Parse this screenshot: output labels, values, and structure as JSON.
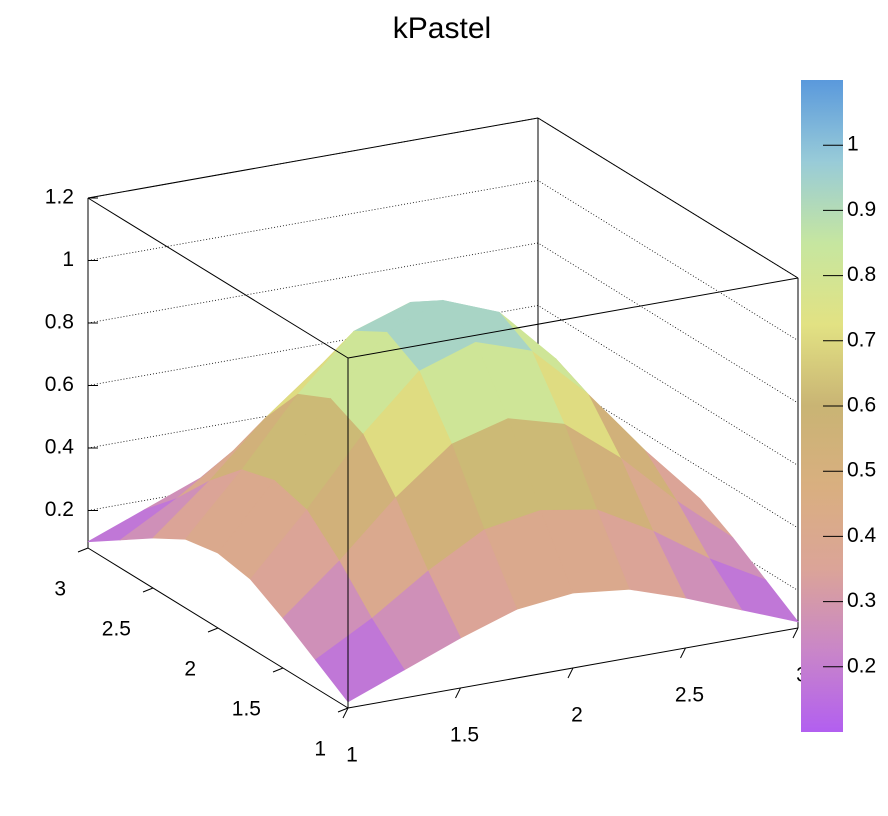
{
  "chart_data": {
    "type": "surface",
    "title": "kPastel",
    "x": [
      1,
      1.25,
      1.5,
      1.75,
      2,
      2.25,
      2.5,
      2.75,
      3
    ],
    "y": [
      1,
      1.25,
      1.5,
      1.75,
      2,
      2.25,
      2.5,
      2.75,
      3
    ],
    "z": [
      [
        0.1,
        0.17,
        0.24,
        0.3,
        0.32,
        0.3,
        0.24,
        0.17,
        0.1
      ],
      [
        0.17,
        0.27,
        0.39,
        0.49,
        0.52,
        0.49,
        0.39,
        0.27,
        0.17
      ],
      [
        0.24,
        0.39,
        0.56,
        0.7,
        0.75,
        0.7,
        0.56,
        0.39,
        0.24
      ],
      [
        0.3,
        0.49,
        0.7,
        0.87,
        0.93,
        0.87,
        0.7,
        0.49,
        0.3
      ],
      [
        0.32,
        0.52,
        0.75,
        0.93,
        1.0,
        0.93,
        0.75,
        0.52,
        0.32
      ],
      [
        0.3,
        0.49,
        0.7,
        0.87,
        0.93,
        0.87,
        0.7,
        0.49,
        0.3
      ],
      [
        0.24,
        0.39,
        0.56,
        0.7,
        0.75,
        0.7,
        0.56,
        0.39,
        0.24
      ],
      [
        0.17,
        0.27,
        0.39,
        0.49,
        0.52,
        0.49,
        0.39,
        0.27,
        0.17
      ],
      [
        0.1,
        0.17,
        0.24,
        0.3,
        0.32,
        0.3,
        0.24,
        0.17,
        0.1
      ]
    ],
    "xlim": [
      1,
      3
    ],
    "ylim": [
      1,
      3
    ],
    "zlim": [
      0.08,
      1.2
    ],
    "xticks": [
      1,
      1.5,
      2,
      2.5,
      3
    ],
    "yticks": [
      1,
      1.5,
      2,
      2.5,
      3
    ],
    "zticks": [
      0.2,
      0.4,
      0.6,
      0.8,
      1,
      1.2
    ],
    "grid": true,
    "colorbar_lim": [
      0.1,
      1.1
    ],
    "colorbar_ticks": [
      0.2,
      0.3,
      0.4,
      0.5,
      0.6,
      0.7,
      0.8,
      0.9,
      1
    ],
    "palette": [
      "#b25ff0",
      "#c986c8",
      "#dba498",
      "#d9af80",
      "#c9b474",
      "#e2e283",
      "#c6e6a0",
      "#98cbd8",
      "#5a99dc"
    ]
  }
}
